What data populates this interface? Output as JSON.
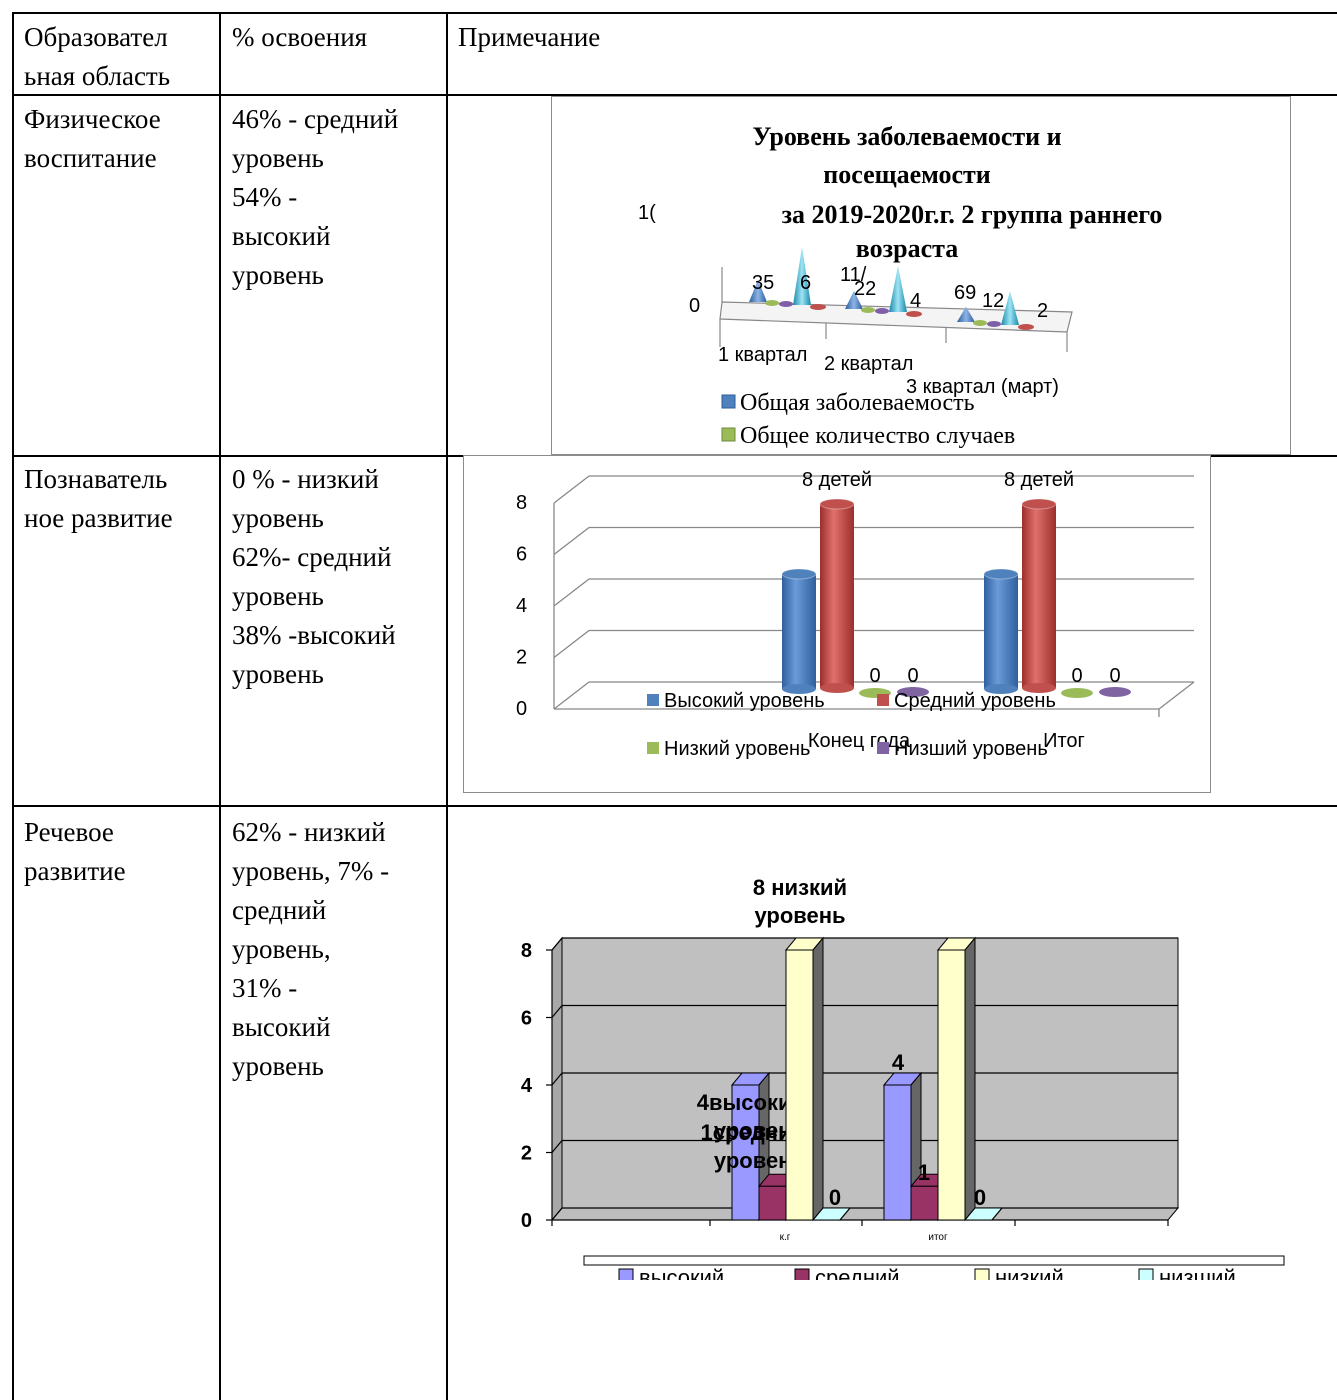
{
  "table": {
    "headers": [
      "Образовател\nьная область",
      "% освоения",
      "Примечание"
    ],
    "rows": [
      {
        "area": "Физическое\nвоспитание",
        "percent": "46% - средний\nуровень\n54% -\nвысокий\nуровень"
      },
      {
        "area": "Познаватель\nное развитие",
        "percent": "0 % - низкий\nуровень\n62%- средний\nуровень\n38% -высокий\nуровень"
      },
      {
        "area": "Речевое\nразвитие",
        "percent": "62% - низкий\nуровень, 7% -\nсредний\nуровень,\n31% -\nвысокий\nуровень"
      }
    ]
  },
  "chart_data": [
    {
      "type": "bar",
      "style": "3d-cone",
      "title": "Уровень заболеваемости и\nпосещаемости\nза 2019-2020г.г. 2 группа раннего\nвозраста",
      "categories": [
        "1 квартал",
        "2 квартал",
        "3 квартал (март)"
      ],
      "value_labels": [
        "35",
        "6",
        "11/",
        "22",
        "4",
        "69",
        "12",
        "2"
      ],
      "axis_tick_labels": [
        "0",
        "1("
      ],
      "series": [
        {
          "name": "Общая заболеваемость",
          "values": [
            35,
            22,
            12
          ]
        },
        {
          "name": "Общее количество случаев",
          "values": [
            6,
            4,
            2
          ]
        }
      ],
      "colors": {
        "blue": "#4f81bd",
        "green": "#9bbb59",
        "cyan": "#31b6d8",
        "red": "#c0504d",
        "purple": "#7f5fa8"
      },
      "legend_position": "bottom"
    },
    {
      "type": "bar",
      "style": "3d-cylinder",
      "categories": [
        "Конец года",
        "Итог"
      ],
      "yticks": [
        "0",
        "2",
        "4",
        "6",
        "8"
      ],
      "ylim": [
        0,
        8
      ],
      "series": [
        {
          "name": "Высокий уровень",
          "values": [
            5,
            5
          ],
          "color": "#4f81bd"
        },
        {
          "name": "Средний уровень",
          "values": [
            8,
            8
          ],
          "color": "#c0504d",
          "labels": [
            "8 детей",
            "8 детей"
          ]
        },
        {
          "name": "Низкий уровень",
          "values": [
            0,
            0
          ],
          "color": "#9bbb59",
          "labels": [
            "0",
            "0"
          ]
        },
        {
          "name": "Низший уровень",
          "values": [
            0,
            0
          ],
          "color": "#8064a2",
          "labels": [
            "0",
            "0"
          ]
        }
      ],
      "legend_position": "bottom"
    },
    {
      "type": "bar",
      "style": "3d-box",
      "categories": [
        "к.г",
        "итог"
      ],
      "yticks": [
        "0",
        "2",
        "4",
        "6",
        "8"
      ],
      "ylim": [
        0,
        8
      ],
      "series": [
        {
          "name": "высокий",
          "values": [
            4,
            4
          ],
          "color": "#9999ff",
          "labels": [
            "4высокий\nуровень",
            "4"
          ]
        },
        {
          "name": "средний",
          "values": [
            1,
            1
          ],
          "color": "#993366",
          "labels": [
            "1средний\nуровень",
            "1"
          ]
        },
        {
          "name": "низкий",
          "values": [
            8,
            8
          ],
          "color": "#ffffcc",
          "labels": [
            "8 низкий\nуровень",
            ""
          ]
        },
        {
          "name": "низший",
          "values": [
            0,
            0
          ],
          "color": "#ccffff",
          "labels": [
            "0",
            "0"
          ]
        }
      ],
      "legend_position": "bottom",
      "legend_labels_display": [
        "высокий",
        "средний",
        "низкий",
        "низший"
      ]
    }
  ]
}
